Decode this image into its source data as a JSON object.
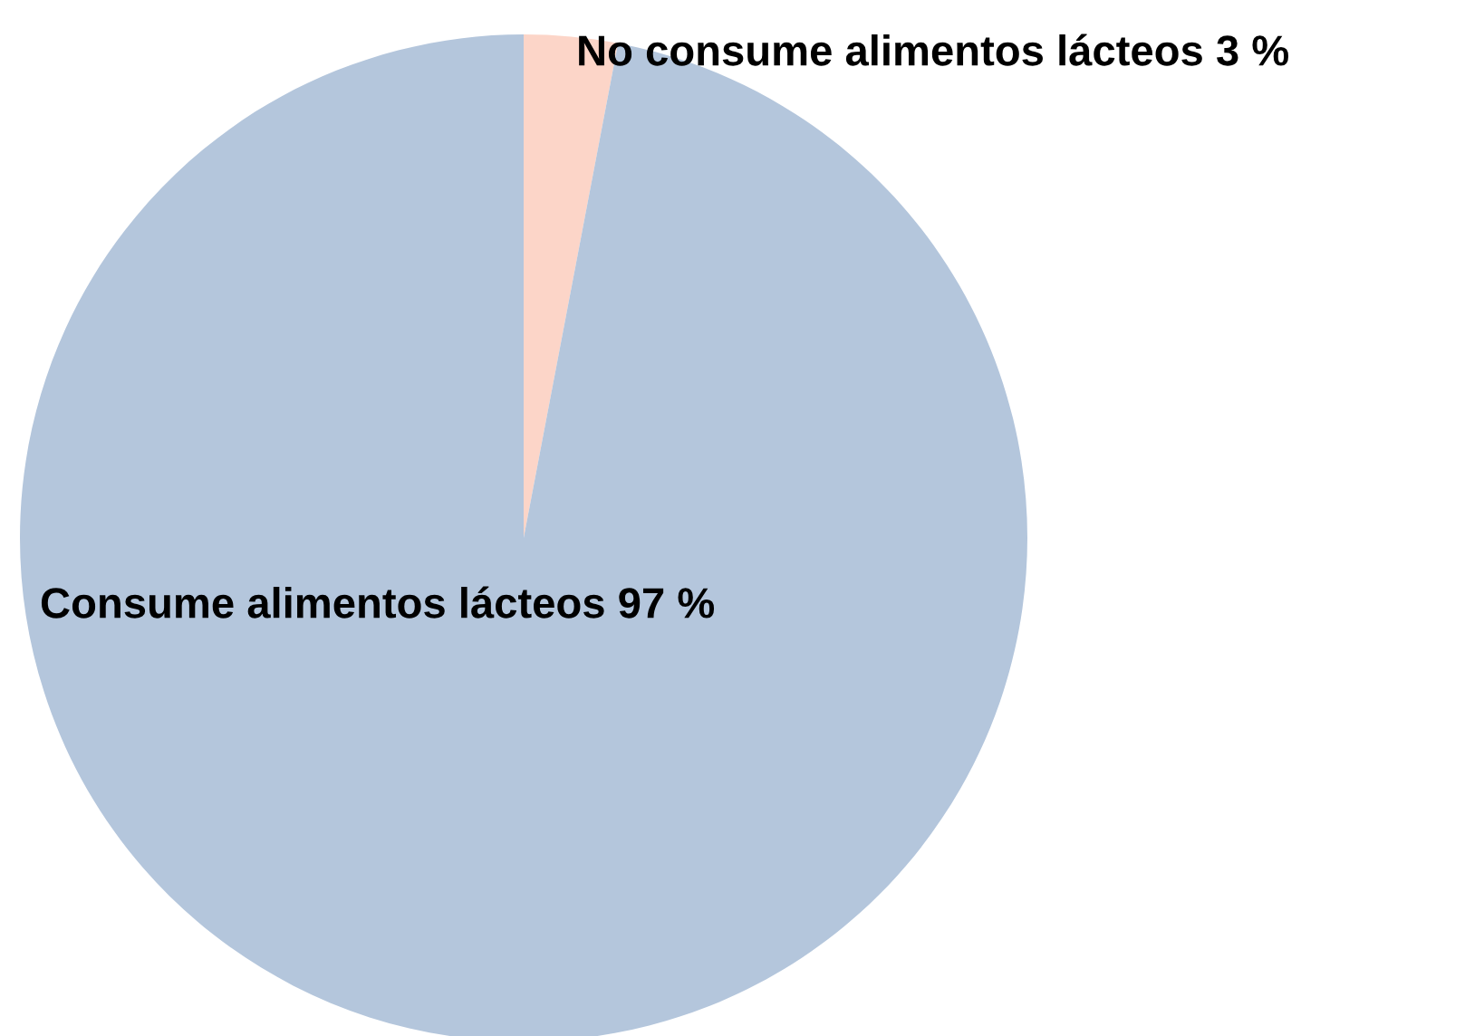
{
  "chart_data": {
    "type": "pie",
    "categories": [
      "No consume alimentos lácteos",
      "Consume alimentos lácteos"
    ],
    "values": [
      3,
      97
    ],
    "value_labels": [
      "3 %",
      "97 %"
    ],
    "colors": [
      "#fcd5c8",
      "#b4c6dc"
    ],
    "legend": false
  }
}
